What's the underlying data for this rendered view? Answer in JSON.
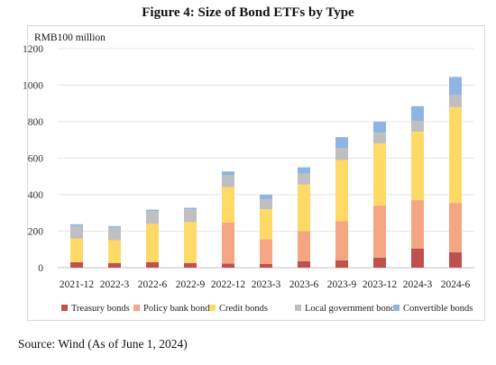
{
  "title": "Figure 4: Size of Bond ETFs by Type",
  "source": "Source: Wind (As of June 1, 2024)",
  "chart_data": {
    "type": "bar",
    "stacked": true,
    "unit_label": "RMB100 million",
    "ylim": [
      0,
      1200
    ],
    "yticks": [
      0,
      200,
      400,
      600,
      800,
      1000,
      1200
    ],
    "grid": true,
    "legend_position": "bottom",
    "categories": [
      "2021-12",
      "2022-3",
      "2022-6",
      "2022-9",
      "2022-12",
      "2023-3",
      "2023-6",
      "2023-9",
      "2023-12",
      "2024-3",
      "2024-6"
    ],
    "series": [
      {
        "name": "Treasury bonds",
        "color": "#c0504d",
        "values": [
          30,
          25,
          30,
          25,
          22,
          20,
          35,
          40,
          55,
          105,
          85
        ]
      },
      {
        "name": "Policy bank bonds",
        "color": "#f4a582",
        "values": [
          0,
          0,
          0,
          0,
          225,
          135,
          165,
          215,
          285,
          265,
          270
        ]
      },
      {
        "name": "Credit bonds",
        "color": "#ffd966",
        "values": [
          130,
          125,
          210,
          225,
          195,
          165,
          255,
          335,
          340,
          375,
          525
        ]
      },
      {
        "name": "Local government bonds",
        "color": "#bfbfbf",
        "values": [
          70,
          70,
          70,
          70,
          65,
          55,
          60,
          65,
          60,
          60,
          65
        ]
      },
      {
        "name": "Convertible bonds",
        "color": "#8db4e2",
        "values": [
          8,
          8,
          8,
          8,
          20,
          25,
          35,
          60,
          60,
          80,
          100
        ]
      }
    ]
  }
}
